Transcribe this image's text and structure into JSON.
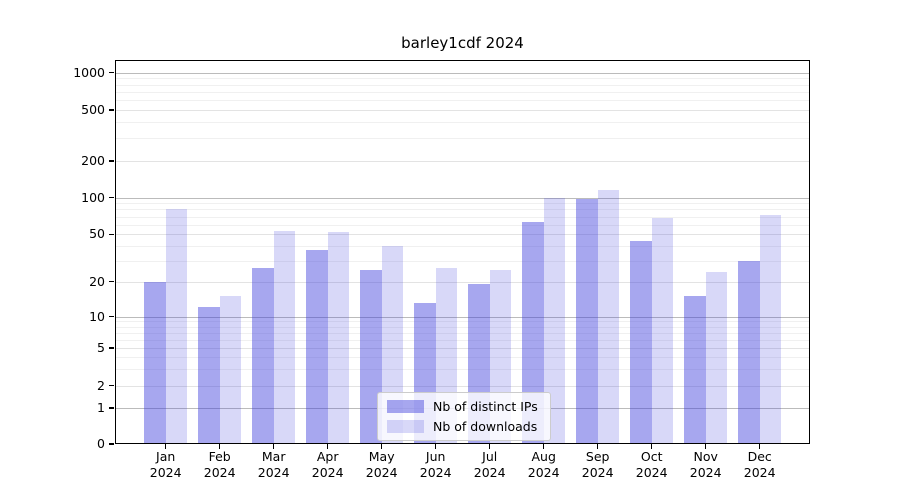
{
  "title": "barley1cdf 2024",
  "colors": {
    "bar_distinct_ips": "rgba(60,60,220,0.45)",
    "bar_downloads": "rgba(60,60,220,0.20)",
    "grid_major": "#bbbbbb",
    "grid_labeled": "#e3e3e3",
    "grid_minor": "#f0f0f0",
    "axis": "#000000"
  },
  "legend": {
    "items": [
      {
        "label": "Nb of distinct IPs",
        "series": "distinct_ips"
      },
      {
        "label": "Nb of downloads",
        "series": "downloads"
      }
    ]
  },
  "chart_data": {
    "type": "bar",
    "title": "barley1cdf 2024",
    "categories": [
      "Jan 2024",
      "Feb 2024",
      "Mar 2024",
      "Apr 2024",
      "May 2024",
      "Jun 2024",
      "Jul 2024",
      "Aug 2024",
      "Sep 2024",
      "Oct 2024",
      "Nov 2024",
      "Dec 2024"
    ],
    "series": [
      {
        "name": "Nb of distinct IPs",
        "key": "distinct_ips",
        "values": [
          20,
          12,
          26,
          37,
          25,
          13,
          19,
          63,
          97,
          44,
          15,
          30
        ]
      },
      {
        "name": "Nb of downloads",
        "key": "downloads",
        "values": [
          80,
          15,
          53,
          52,
          40,
          26,
          25,
          100,
          115,
          68,
          24,
          72
        ]
      }
    ],
    "xlabel": "",
    "ylabel": "",
    "yscale": "log-like with zero baseline",
    "yticks": [
      0,
      1,
      2,
      5,
      10,
      20,
      50,
      100,
      200,
      500,
      1000
    ],
    "ylim": [
      0,
      1400
    ],
    "grid": true,
    "legend_position": "lower center"
  }
}
